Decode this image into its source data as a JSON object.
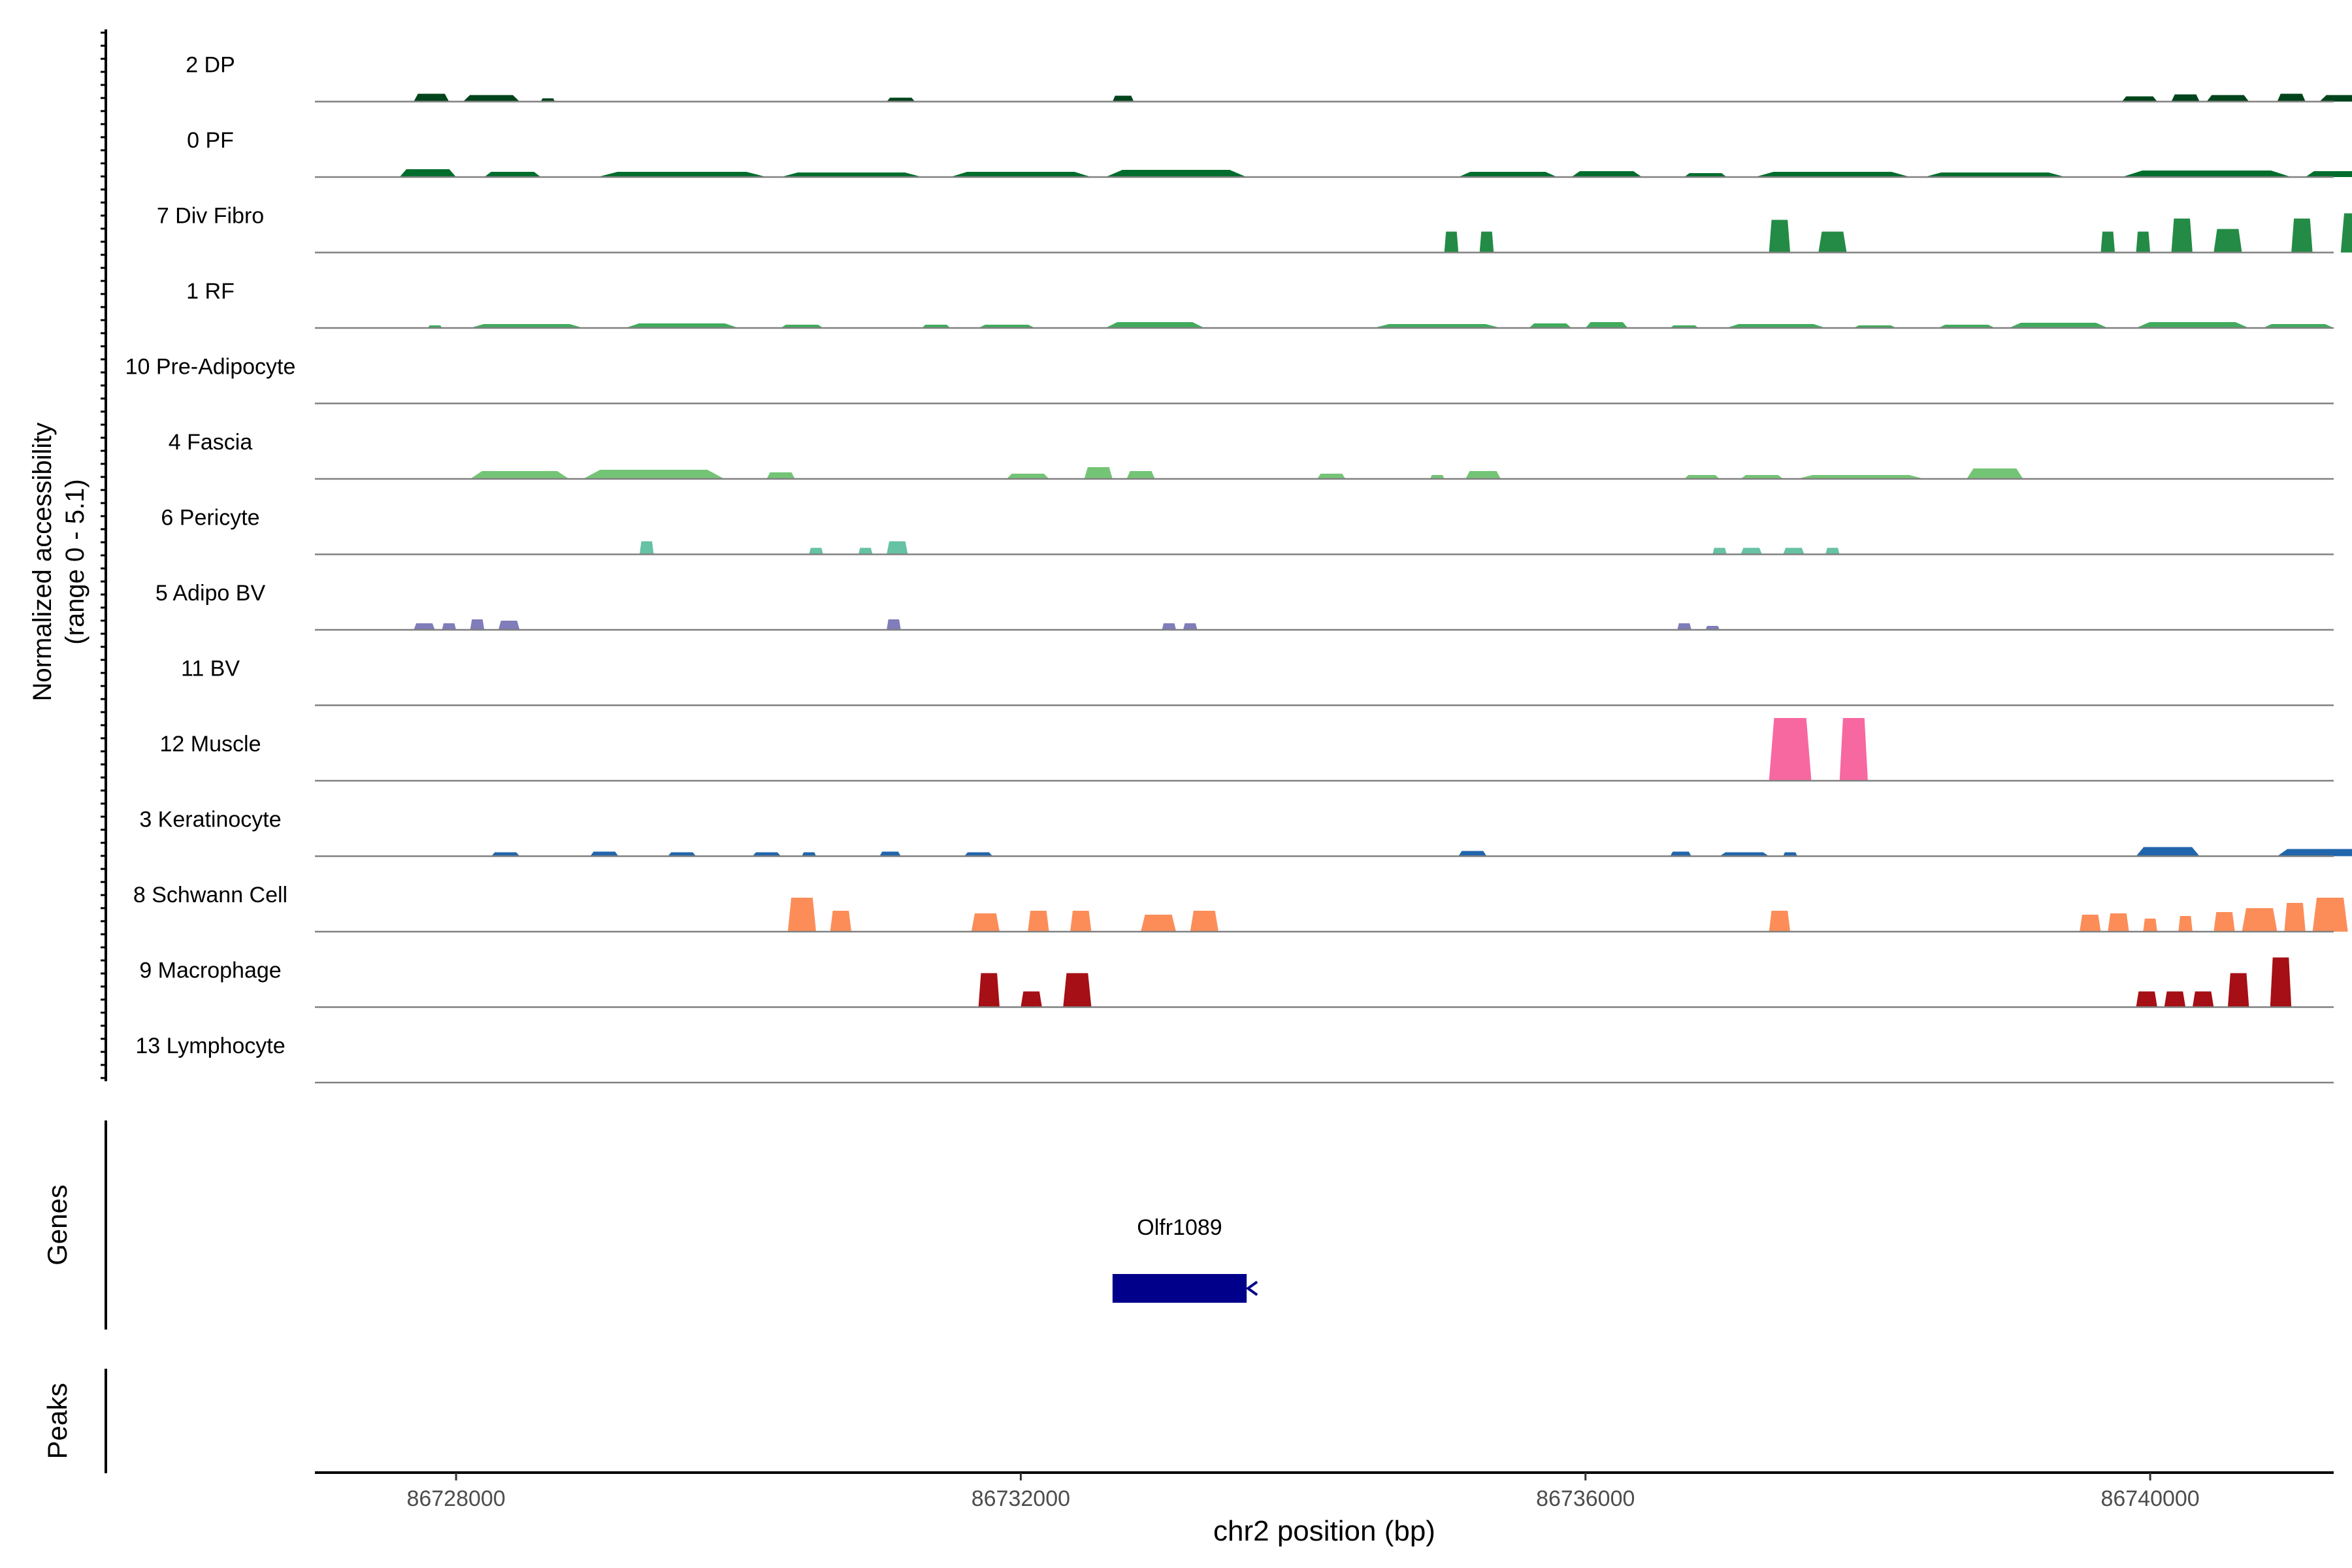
{
  "chart_data": {
    "type": "area",
    "xlabel": "chr2 position (bp)",
    "ylabel": [
      "Normalized accessibility",
      "(range 0 - 5.1)"
    ],
    "y_range": [
      0,
      5.1
    ],
    "xlim": [
      86727000,
      86741300
    ],
    "x_ticks": [
      86728000,
      86732000,
      86736000,
      86740000
    ],
    "x_tick_labels": [
      "86728000",
      "86732000",
      "86736000",
      "86740000"
    ],
    "tracks": [
      {
        "name": "2 DP",
        "color": "#00441b",
        "peaks": [
          [
            86727700,
            86727950,
            0.6
          ],
          [
            86728050,
            86728450,
            0.5
          ],
          [
            86728600,
            86728700,
            0.25
          ],
          [
            86731050,
            86731250,
            0.3
          ],
          [
            86732650,
            86732800,
            0.45
          ],
          [
            86739800,
            86740050,
            0.4
          ],
          [
            86740150,
            86740350,
            0.55
          ],
          [
            86740400,
            86740700,
            0.5
          ],
          [
            86740900,
            86741100,
            0.6
          ],
          [
            86741200,
            86741600,
            0.5
          ]
        ]
      },
      {
        "name": "0 PF",
        "color": "#006d2c",
        "peaks": [
          [
            86727600,
            86728000,
            0.6
          ],
          [
            86728200,
            86728600,
            0.4
          ],
          [
            86729000,
            86730200,
            0.4
          ],
          [
            86730300,
            86731300,
            0.35
          ],
          [
            86731500,
            86732500,
            0.4
          ],
          [
            86732600,
            86733600,
            0.55
          ],
          [
            86735100,
            86735800,
            0.4
          ],
          [
            86735900,
            86736400,
            0.45
          ],
          [
            86736700,
            86737000,
            0.3
          ],
          [
            86737200,
            86738300,
            0.4
          ],
          [
            86738400,
            86739400,
            0.35
          ],
          [
            86739800,
            86741000,
            0.5
          ],
          [
            86741100,
            86741600,
            0.45
          ]
        ]
      },
      {
        "name": "7 Div Fibro",
        "color": "#238b45",
        "peaks": [
          [
            86735000,
            86735100,
            1.6
          ],
          [
            86735250,
            86735350,
            1.6
          ],
          [
            86737300,
            86737450,
            2.5
          ],
          [
            86737650,
            86737850,
            1.6
          ],
          [
            86739650,
            86739750,
            1.6
          ],
          [
            86739900,
            86740000,
            1.6
          ],
          [
            86740150,
            86740300,
            2.6
          ],
          [
            86740450,
            86740650,
            1.8
          ],
          [
            86741000,
            86741150,
            2.6
          ],
          [
            86741350,
            86741550,
            3.0
          ]
        ]
      },
      {
        "name": "1 RF",
        "color": "#41ab5d",
        "peaks": [
          [
            86727800,
            86727900,
            0.2
          ],
          [
            86728100,
            86728900,
            0.3
          ],
          [
            86729200,
            86730000,
            0.35
          ],
          [
            86730300,
            86730600,
            0.25
          ],
          [
            86731300,
            86731500,
            0.25
          ],
          [
            86731700,
            86732100,
            0.25
          ],
          [
            86732600,
            86733300,
            0.45
          ],
          [
            86734500,
            86735400,
            0.3
          ],
          [
            86735600,
            86735900,
            0.35
          ],
          [
            86736000,
            86736300,
            0.45
          ],
          [
            86736600,
            86736800,
            0.2
          ],
          [
            86737000,
            86737700,
            0.3
          ],
          [
            86737900,
            86738200,
            0.2
          ],
          [
            86738500,
            86738900,
            0.25
          ],
          [
            86739000,
            86739700,
            0.4
          ],
          [
            86739900,
            86740700,
            0.45
          ],
          [
            86740800,
            86741300,
            0.3
          ]
        ]
      },
      {
        "name": "10 Pre-Adipocyte",
        "color": "#74c476",
        "peaks": []
      },
      {
        "name": "4 Fascia",
        "color": "#74c476",
        "peaks": [
          [
            86728100,
            86728800,
            0.6
          ],
          [
            86728900,
            86729900,
            0.7
          ],
          [
            86730200,
            86730400,
            0.5
          ],
          [
            86731900,
            86732200,
            0.4
          ],
          [
            86732450,
            86732650,
            0.9
          ],
          [
            86732750,
            86732950,
            0.6
          ],
          [
            86734100,
            86734300,
            0.4
          ],
          [
            86734900,
            86735000,
            0.3
          ],
          [
            86735150,
            86735400,
            0.6
          ],
          [
            86736700,
            86736950,
            0.3
          ],
          [
            86737100,
            86737400,
            0.3
          ],
          [
            86737500,
            86738400,
            0.3
          ],
          [
            86738700,
            86739100,
            0.8
          ]
        ]
      },
      {
        "name": "6 Pericyte",
        "color": "#66c2a4",
        "peaks": [
          [
            86729300,
            86729400,
            1.0
          ],
          [
            86730500,
            86730600,
            0.5
          ],
          [
            86730850,
            86730950,
            0.5
          ],
          [
            86731050,
            86731200,
            1.0
          ],
          [
            86736900,
            86737000,
            0.5
          ],
          [
            86737100,
            86737250,
            0.5
          ],
          [
            86737400,
            86737550,
            0.5
          ],
          [
            86737700,
            86737800,
            0.5
          ]
        ]
      },
      {
        "name": "5 Adipo BV",
        "color": "#807dba",
        "peaks": [
          [
            86727700,
            86727850,
            0.5
          ],
          [
            86727900,
            86728000,
            0.5
          ],
          [
            86728100,
            86728200,
            0.8
          ],
          [
            86728300,
            86728450,
            0.7
          ],
          [
            86731050,
            86731150,
            0.8
          ],
          [
            86733000,
            86733100,
            0.5
          ],
          [
            86733150,
            86733250,
            0.5
          ],
          [
            86736650,
            86736750,
            0.5
          ],
          [
            86736850,
            86736950,
            0.3
          ]
        ]
      },
      {
        "name": "11 BV",
        "color": "#6a51a3",
        "peaks": []
      },
      {
        "name": "12 Muscle",
        "color": "#f768a1",
        "peaks": [
          [
            86737300,
            86737600,
            4.8
          ],
          [
            86737800,
            86738000,
            4.8
          ]
        ]
      },
      {
        "name": "3 Keratinocyte",
        "color": "#2166ac",
        "peaks": [
          [
            86728250,
            86728450,
            0.3
          ],
          [
            86728950,
            86729150,
            0.35
          ],
          [
            86729500,
            86729700,
            0.3
          ],
          [
            86730100,
            86730300,
            0.3
          ],
          [
            86730450,
            86730550,
            0.3
          ],
          [
            86731000,
            86731150,
            0.35
          ],
          [
            86731600,
            86731800,
            0.3
          ],
          [
            86735100,
            86735300,
            0.4
          ],
          [
            86736600,
            86736750,
            0.35
          ],
          [
            86736950,
            86737300,
            0.3
          ],
          [
            86737400,
            86737500,
            0.3
          ],
          [
            86739900,
            86740350,
            0.7
          ],
          [
            86740900,
            86741500,
            0.55
          ]
        ]
      },
      {
        "name": "8 Schwann Cell",
        "color": "#fc8d59",
        "peaks": [
          [
            86730350,
            86730550,
            2.6
          ],
          [
            86730650,
            86730800,
            1.6
          ],
          [
            86731650,
            86731850,
            1.4
          ],
          [
            86732050,
            86732200,
            1.6
          ],
          [
            86732350,
            86732500,
            1.6
          ],
          [
            86732850,
            86733100,
            1.3
          ],
          [
            86733200,
            86733400,
            1.6
          ],
          [
            86737300,
            86737450,
            1.6
          ],
          [
            86739500,
            86739650,
            1.3
          ],
          [
            86739700,
            86739850,
            1.4
          ],
          [
            86739950,
            86740050,
            1.0
          ],
          [
            86740200,
            86740300,
            1.2
          ],
          [
            86740450,
            86740600,
            1.5
          ],
          [
            86740650,
            86740900,
            1.8
          ],
          [
            86740950,
            86741100,
            2.2
          ],
          [
            86741150,
            86741400,
            2.6
          ]
        ]
      },
      {
        "name": "9 Macrophage",
        "color": "#a50f15",
        "peaks": [
          [
            86731700,
            86731850,
            2.6
          ],
          [
            86732000,
            86732150,
            1.2
          ],
          [
            86732300,
            86732500,
            2.6
          ],
          [
            86739900,
            86740050,
            1.2
          ],
          [
            86740100,
            86740250,
            1.2
          ],
          [
            86740300,
            86740450,
            1.2
          ],
          [
            86740550,
            86740700,
            2.6
          ],
          [
            86740850,
            86741000,
            3.8
          ]
        ]
      },
      {
        "name": "13 Lymphocyte",
        "color": "#e31a1c",
        "peaks": []
      }
    ],
    "genes": [
      {
        "name": "Olfr1089",
        "start": 86732650,
        "end": 86733600,
        "strand": "-",
        "color": "#00008b"
      }
    ],
    "genes_label": "Genes",
    "peaks_label": "Peaks"
  }
}
